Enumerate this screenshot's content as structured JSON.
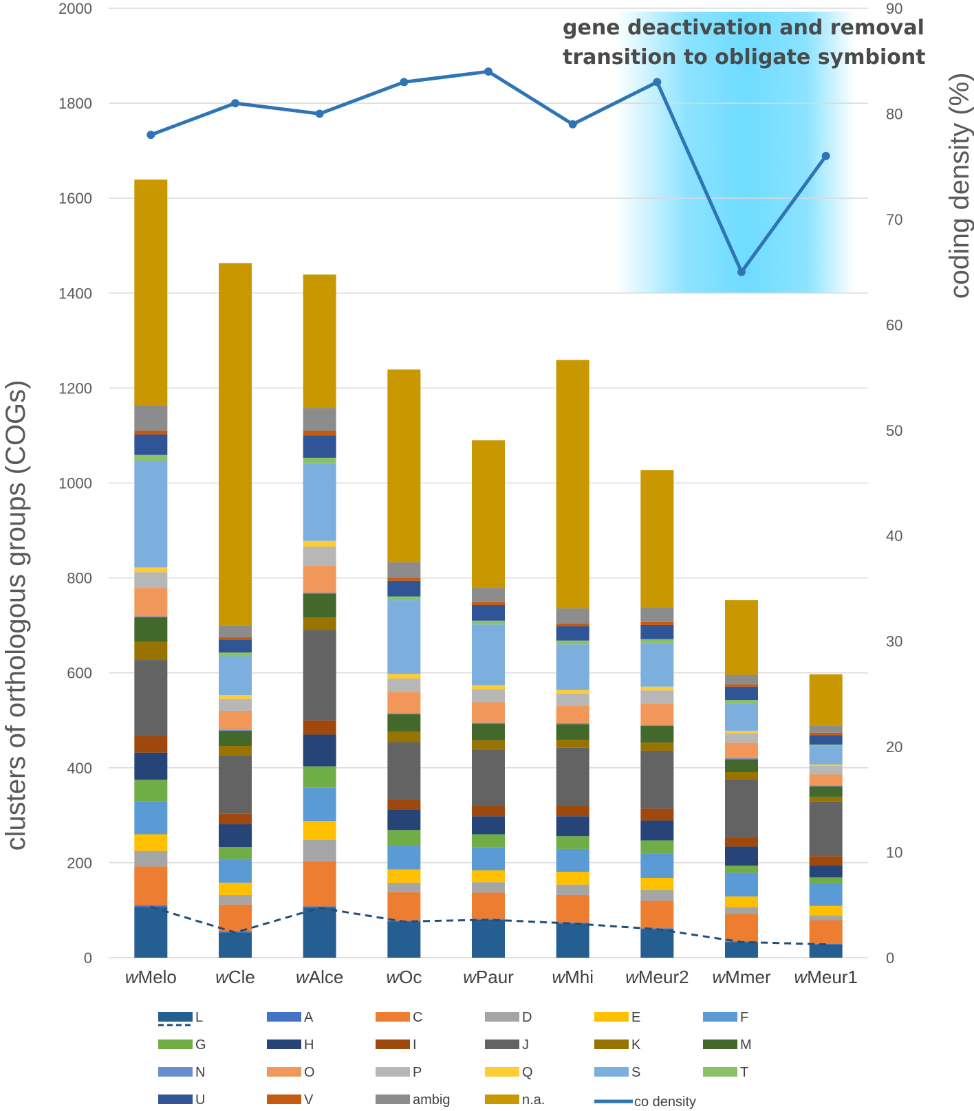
{
  "chart_data": {
    "type": "bar",
    "stacked": true,
    "categories": [
      "wMelo",
      "wCle",
      "wAlce",
      "wOc",
      "wPaur",
      "wMhi",
      "wMeur2",
      "wMmer",
      "wMeur1"
    ],
    "category_prefix": "w",
    "category_suffixes": [
      "Melo",
      "Cle",
      "Alce",
      "Oc",
      "Paur",
      "Mhi",
      "Meur2",
      "Mmer",
      "Meur1"
    ],
    "ylabel": "clusters of orthologous groups (COGs)",
    "ylim": [
      0,
      2000
    ],
    "yticks": [
      0,
      200,
      400,
      600,
      800,
      1000,
      1200,
      1400,
      1600,
      1800,
      2000
    ],
    "y2label": "coding density (%)",
    "y2lim": [
      0,
      90
    ],
    "y2ticks": [
      0,
      10,
      20,
      30,
      40,
      50,
      60,
      70,
      80,
      90
    ],
    "grid": true,
    "legend_position": "bottom",
    "annotation": {
      "line1": "gene deactivation and removal",
      "line2": "transition to obligate symbiont",
      "highlight_color": "#6fdcff",
      "highlight_categories": [
        "wMeur2",
        "wMeur1"
      ],
      "highlight_y2_range": [
        63,
        90
      ]
    },
    "series": [
      {
        "name": "L",
        "color": "#255e91",
        "values": [
          107,
          53,
          105,
          76,
          80,
          72,
          60,
          33,
          28
        ]
      },
      {
        "name": "A",
        "color": "#4472c4",
        "values": [
          3,
          2,
          3,
          2,
          2,
          2,
          2,
          1,
          1
        ]
      },
      {
        "name": "C",
        "color": "#ed7d31",
        "values": [
          82,
          57,
          95,
          60,
          55,
          58,
          58,
          58,
          50
        ]
      },
      {
        "name": "D",
        "color": "#a5a5a5",
        "values": [
          33,
          20,
          45,
          20,
          22,
          22,
          23,
          15,
          10
        ]
      },
      {
        "name": "E",
        "color": "#ffc000",
        "values": [
          35,
          26,
          40,
          28,
          25,
          27,
          25,
          22,
          20
        ]
      },
      {
        "name": "F",
        "color": "#5b9bd5",
        "values": [
          70,
          50,
          70,
          50,
          48,
          48,
          52,
          50,
          48
        ]
      },
      {
        "name": "G",
        "color": "#70ad47",
        "values": [
          45,
          25,
          45,
          33,
          28,
          27,
          27,
          15,
          12
        ]
      },
      {
        "name": "H",
        "color": "#264478",
        "values": [
          57,
          48,
          67,
          43,
          38,
          42,
          42,
          40,
          25
        ]
      },
      {
        "name": "I",
        "color": "#9e480e",
        "values": [
          35,
          22,
          30,
          22,
          22,
          22,
          25,
          20,
          20
        ]
      },
      {
        "name": "J",
        "color": "#636363",
        "values": [
          160,
          123,
          190,
          120,
          118,
          122,
          122,
          122,
          115
        ]
      },
      {
        "name": "K",
        "color": "#997300",
        "values": [
          38,
          20,
          27,
          22,
          20,
          17,
          17,
          15,
          10
        ]
      },
      {
        "name": "M",
        "color": "#43682b",
        "values": [
          52,
          32,
          50,
          37,
          35,
          33,
          35,
          27,
          22
        ]
      },
      {
        "name": "N",
        "color": "#698ed0",
        "values": [
          2,
          2,
          2,
          2,
          2,
          2,
          2,
          2,
          2
        ]
      },
      {
        "name": "O",
        "color": "#f1975a",
        "values": [
          60,
          40,
          57,
          45,
          43,
          37,
          45,
          33,
          23
        ]
      },
      {
        "name": "P",
        "color": "#b7b7b7",
        "values": [
          33,
          25,
          40,
          28,
          28,
          25,
          28,
          20,
          18
        ]
      },
      {
        "name": "Q",
        "color": "#ffcd33",
        "values": [
          10,
          8,
          12,
          10,
          8,
          8,
          8,
          5,
          3
        ]
      },
      {
        "name": "S",
        "color": "#7cafdd",
        "values": [
          225,
          82,
          163,
          155,
          128,
          96,
          92,
          57,
          40
        ]
      },
      {
        "name": "T",
        "color": "#8cc168",
        "values": [
          12,
          8,
          12,
          8,
          8,
          8,
          8,
          8,
          2
        ]
      },
      {
        "name": "U",
        "color": "#2f5597",
        "values": [
          43,
          27,
          47,
          33,
          33,
          30,
          30,
          28,
          20
        ]
      },
      {
        "name": "V",
        "color": "#c55a11",
        "values": [
          8,
          5,
          10,
          6,
          6,
          6,
          6,
          5,
          5
        ]
      },
      {
        "name": "ambig",
        "color": "#8c8c8c",
        "values": [
          53,
          25,
          48,
          33,
          30,
          32,
          31,
          20,
          15
        ]
      },
      {
        "name": "n.a.",
        "color": "#c99800",
        "values": [
          476,
          763,
          281,
          406,
          311,
          523,
          289,
          157,
          108
        ]
      }
    ],
    "line_series": [
      {
        "name": "co density",
        "axis": "right",
        "color": "#2e75b6",
        "style": "solid",
        "values": [
          78,
          81,
          80,
          83,
          84,
          79,
          83,
          65,
          76
        ]
      },
      {
        "name": "L",
        "axis": "left",
        "color": "#1f4e79",
        "style": "dashed",
        "values": [
          107,
          53,
          105,
          76,
          80,
          72,
          60,
          33,
          28
        ]
      }
    ]
  }
}
